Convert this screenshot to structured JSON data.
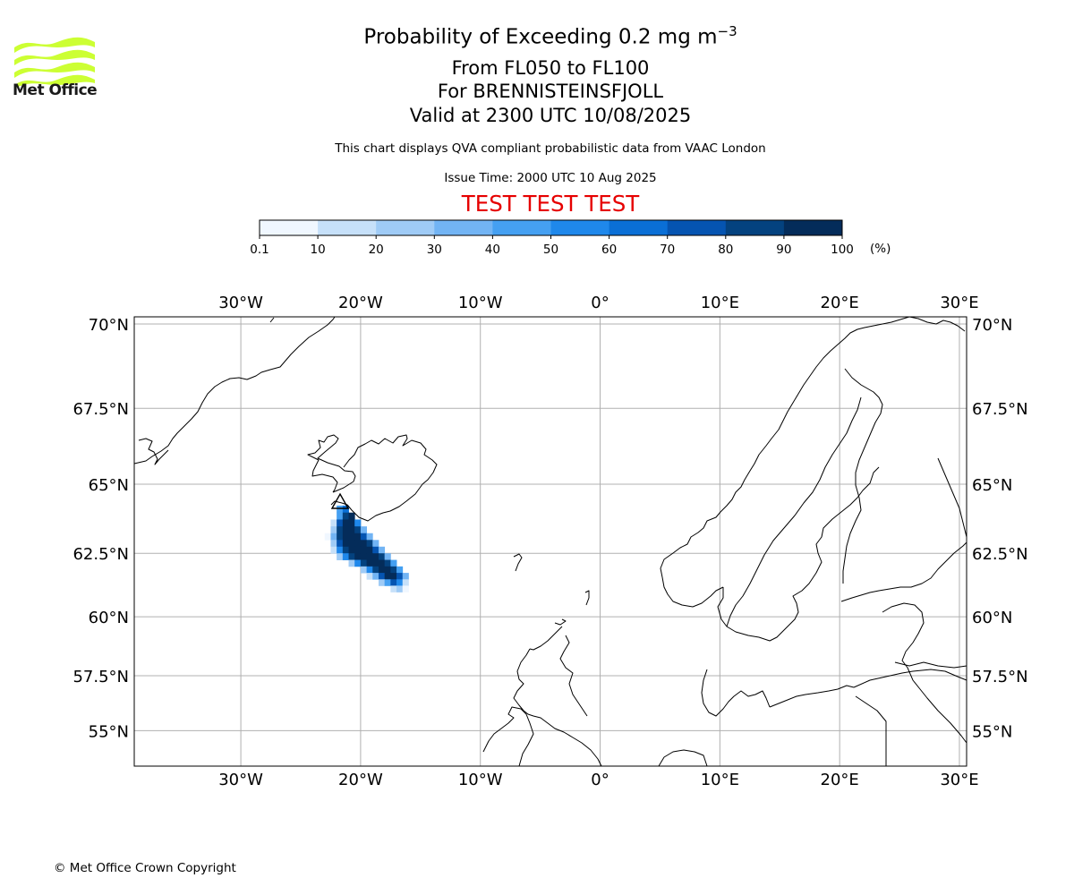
{
  "header": {
    "title_prefix": "Probability of Exceeding 0.2 mg m",
    "title_exponent": "−3",
    "line2": "From FL050 to FL100",
    "line3": "For BRENNISTEINSFJOLL",
    "line4": "Valid at 2300 UTC 10/08/2025",
    "subtitle": "This chart displays QVA compliant probabilistic data from VAAC London",
    "issue_time": "Issue Time: 2000 UTC 10 Aug 2025",
    "test_banner": "TEST TEST TEST",
    "test_color": "#e60000"
  },
  "logo": {
    "text": "Met Office",
    "color": "#ccff33"
  },
  "colorbar": {
    "ticks": [
      "0.1",
      "10",
      "20",
      "30",
      "40",
      "50",
      "60",
      "70",
      "80",
      "90",
      "100"
    ],
    "unit": "(%)",
    "colors": [
      "#f0f7ff",
      "#c6e0f9",
      "#9fcbf6",
      "#72b4f4",
      "#45a0f2",
      "#1f88eb",
      "#0a6fd6",
      "#0554b1",
      "#04427f",
      "#042c5a"
    ]
  },
  "map": {
    "lon_labels": [
      "30°W",
      "20°W",
      "10°W",
      "0°",
      "10°E",
      "20°E",
      "30°E"
    ],
    "lat_labels": [
      "70°N",
      "67.5°N",
      "65°N",
      "62.5°N",
      "60°N",
      "57.5°N",
      "55°N"
    ],
    "lons": [
      -30,
      -20,
      -10,
      0,
      10,
      20,
      30
    ],
    "lats": [
      70,
      67.5,
      65,
      62.5,
      60,
      57.5,
      55
    ],
    "extent": {
      "lon_min": -38.9,
      "lon_max": 30.6,
      "lat_min": 53.3,
      "lat_max": 70.2
    },
    "source_volcano": "Brennisteinsfjoll"
  },
  "plume": {
    "cells": [
      [
        -22.0,
        64.0,
        45
      ],
      [
        -21.5,
        64.0,
        65
      ],
      [
        -22.0,
        63.75,
        40
      ],
      [
        -21.5,
        63.75,
        85
      ],
      [
        -21.0,
        63.75,
        95
      ],
      [
        -22.5,
        63.5,
        15
      ],
      [
        -22.0,
        63.5,
        75
      ],
      [
        -21.5,
        63.5,
        95
      ],
      [
        -21.0,
        63.5,
        95
      ],
      [
        -20.5,
        63.5,
        55
      ],
      [
        -22.5,
        63.25,
        25
      ],
      [
        -22.0,
        63.25,
        85
      ],
      [
        -21.5,
        63.25,
        95
      ],
      [
        -21.0,
        63.25,
        95
      ],
      [
        -20.5,
        63.25,
        80
      ],
      [
        -20.0,
        63.25,
        35
      ],
      [
        -23.0,
        63.0,
        5
      ],
      [
        -22.5,
        63.0,
        35
      ],
      [
        -22.0,
        63.0,
        85
      ],
      [
        -21.5,
        63.0,
        95
      ],
      [
        -21.0,
        63.0,
        95
      ],
      [
        -20.5,
        63.0,
        95
      ],
      [
        -20.0,
        63.0,
        75
      ],
      [
        -19.5,
        63.0,
        35
      ],
      [
        -22.5,
        62.75,
        25
      ],
      [
        -22.0,
        62.75,
        75
      ],
      [
        -21.5,
        62.75,
        95
      ],
      [
        -21.0,
        62.75,
        95
      ],
      [
        -20.5,
        62.75,
        95
      ],
      [
        -20.0,
        62.75,
        95
      ],
      [
        -19.5,
        62.75,
        80
      ],
      [
        -19.0,
        62.75,
        35
      ],
      [
        -22.5,
        62.5,
        15
      ],
      [
        -22.0,
        62.5,
        55
      ],
      [
        -21.5,
        62.5,
        85
      ],
      [
        -21.0,
        62.5,
        95
      ],
      [
        -20.5,
        62.5,
        95
      ],
      [
        -20.0,
        62.5,
        95
      ],
      [
        -19.5,
        62.5,
        95
      ],
      [
        -19.0,
        62.5,
        75
      ],
      [
        -18.5,
        62.5,
        35
      ],
      [
        -22.0,
        62.25,
        25
      ],
      [
        -21.5,
        62.25,
        55
      ],
      [
        -21.0,
        62.25,
        85
      ],
      [
        -20.5,
        62.25,
        95
      ],
      [
        -20.0,
        62.25,
        95
      ],
      [
        -19.5,
        62.25,
        95
      ],
      [
        -19.0,
        62.25,
        95
      ],
      [
        -18.5,
        62.25,
        80
      ],
      [
        -18.0,
        62.25,
        35
      ],
      [
        -21.0,
        62.0,
        25
      ],
      [
        -20.5,
        62.0,
        55
      ],
      [
        -20.0,
        62.0,
        85
      ],
      [
        -19.5,
        62.0,
        95
      ],
      [
        -19.0,
        62.0,
        95
      ],
      [
        -18.5,
        62.0,
        95
      ],
      [
        -18.0,
        62.0,
        85
      ],
      [
        -17.5,
        62.0,
        45
      ],
      [
        -20.0,
        61.75,
        25
      ],
      [
        -19.5,
        61.75,
        55
      ],
      [
        -19.0,
        61.75,
        85
      ],
      [
        -18.5,
        61.75,
        95
      ],
      [
        -18.0,
        61.75,
        95
      ],
      [
        -17.5,
        61.75,
        85
      ],
      [
        -17.0,
        61.75,
        45
      ],
      [
        -19.5,
        61.5,
        15
      ],
      [
        -19.0,
        61.5,
        35
      ],
      [
        -18.5,
        61.5,
        75
      ],
      [
        -18.0,
        61.5,
        95
      ],
      [
        -17.5,
        61.5,
        95
      ],
      [
        -17.0,
        61.5,
        75
      ],
      [
        -16.5,
        61.5,
        35
      ],
      [
        -18.5,
        61.25,
        25
      ],
      [
        -18.0,
        61.25,
        45
      ],
      [
        -17.5,
        61.25,
        75
      ],
      [
        -17.0,
        61.25,
        55
      ],
      [
        -16.5,
        61.25,
        15
      ],
      [
        -17.5,
        61.0,
        15
      ],
      [
        -17.0,
        61.0,
        25
      ],
      [
        -16.5,
        61.0,
        5
      ]
    ]
  }
}
